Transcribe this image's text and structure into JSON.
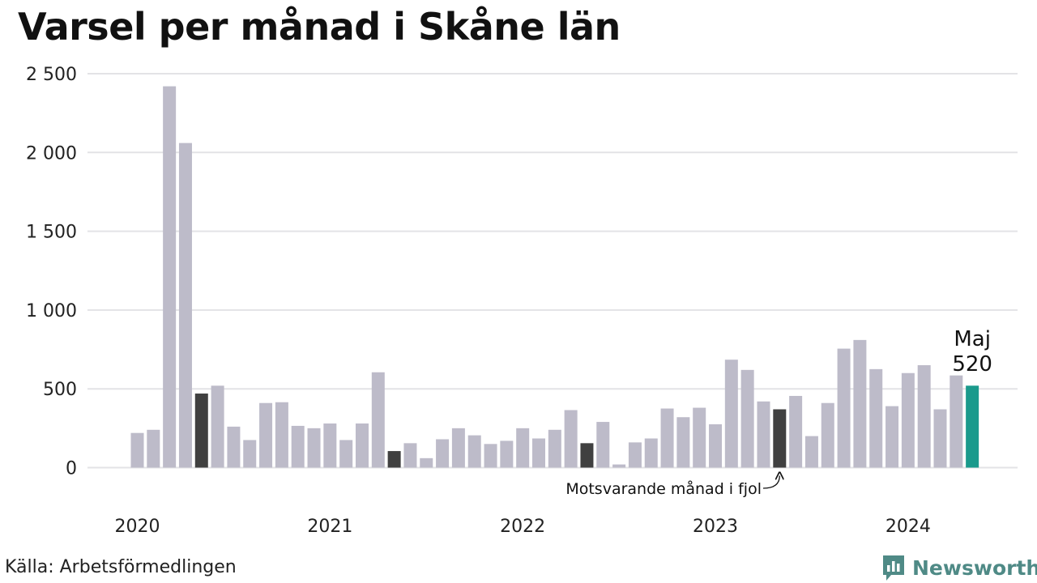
{
  "title": "Varsel per månad i Skåne län",
  "source": "Källa: Arbetsförmedlingen",
  "brand": "Newsworthy",
  "colors": {
    "bar": "#bdbbc9",
    "bar_same_month": "#404040",
    "bar_latest": "#1a9a8c",
    "grid": "#e3e3e6",
    "brand": "#4f8a86"
  },
  "chart_data": {
    "type": "bar",
    "title": "Varsel per månad i Skåne län",
    "xlabel": "",
    "ylabel": "",
    "ylim": [
      0,
      2500
    ],
    "yticks": [
      {
        "value": 0,
        "label": "0"
      },
      {
        "value": 500,
        "label": "500"
      },
      {
        "value": 1000,
        "label": "1 000"
      },
      {
        "value": 1500,
        "label": "1 500"
      },
      {
        "value": 2000,
        "label": "2 000"
      },
      {
        "value": 2500,
        "label": "2 500"
      }
    ],
    "year_labels": [
      {
        "label": "2020",
        "month_index": 0
      },
      {
        "label": "2021",
        "month_index": 12
      },
      {
        "label": "2022",
        "month_index": 24
      },
      {
        "label": "2023",
        "month_index": 36
      },
      {
        "label": "2024",
        "month_index": 48
      }
    ],
    "series": [
      {
        "start": "2020-01",
        "end": "2024-05",
        "values": [
          220,
          240,
          2420,
          2060,
          470,
          520,
          260,
          175,
          410,
          415,
          265,
          250,
          280,
          175,
          280,
          605,
          105,
          155,
          60,
          180,
          250,
          205,
          150,
          170,
          250,
          185,
          240,
          365,
          155,
          290,
          20,
          160,
          185,
          375,
          320,
          380,
          275,
          685,
          620,
          420,
          370,
          455,
          200,
          410,
          755,
          810,
          625,
          390,
          600,
          650,
          370,
          585,
          520
        ]
      }
    ],
    "highlight_same_month": [
      4,
      16,
      28,
      40
    ],
    "highlight_latest": 52,
    "latest_label": {
      "month": "Maj",
      "value": "520"
    },
    "annotation": "Motsvarande månad i fjol"
  }
}
